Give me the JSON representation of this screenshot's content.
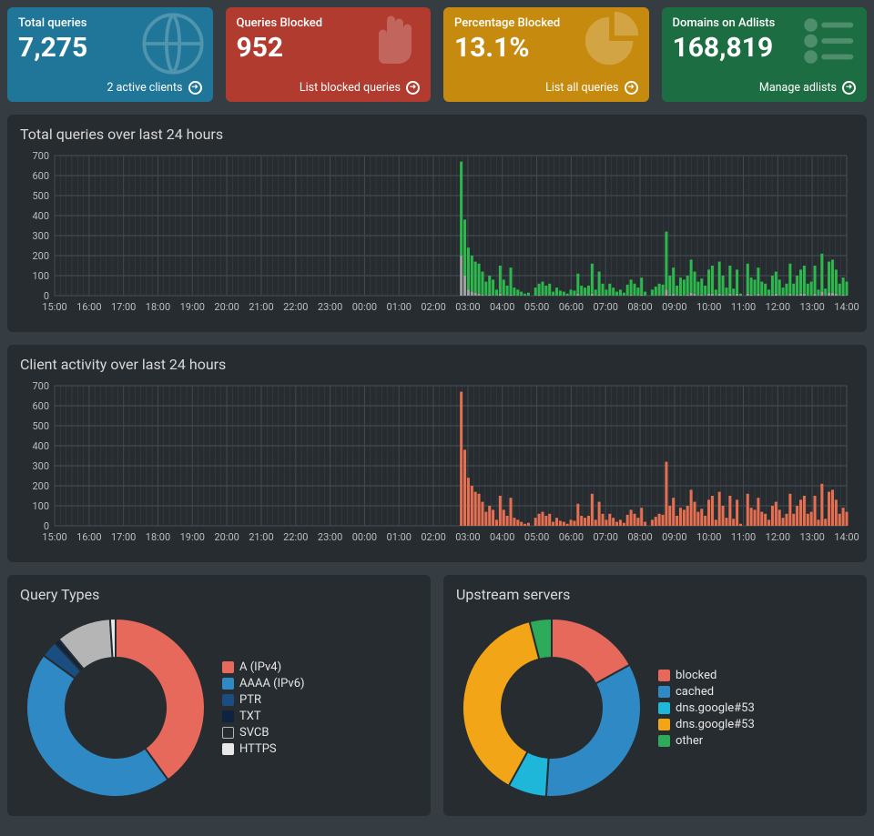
{
  "cards": [
    {
      "label": "Total queries",
      "value": "7,275",
      "link": "2 active clients",
      "bg": "#1f7698",
      "bgDark": "#175a75",
      "icon": "globe"
    },
    {
      "label": "Queries Blocked",
      "value": "952",
      "link": "List blocked queries",
      "bg": "#b13b2f",
      "bgDark": "#8e2f26",
      "icon": "hand"
    },
    {
      "label": "Percentage Blocked",
      "value": "13.1%",
      "link": "List all queries",
      "bg": "#c68a0e",
      "bgDark": "#9e6e0b",
      "icon": "pie"
    },
    {
      "label": "Domains on Adlists",
      "value": "168,819",
      "link": "Manage adlists",
      "bg": "#1c6e42",
      "bgDark": "#155634",
      "icon": "list"
    }
  ],
  "chart1": {
    "title": "Total queries over last 24 hours",
    "ylim": [
      0,
      700
    ],
    "ytick_step": 100,
    "bg": "#272c30",
    "grid": "#4a5056",
    "xlabels": [
      "15:00",
      "16:00",
      "17:00",
      "18:00",
      "19:00",
      "20:00",
      "21:00",
      "22:00",
      "23:00",
      "00:00",
      "01:00",
      "02:00",
      "03:00",
      "04:00",
      "05:00",
      "06:00",
      "07:00",
      "08:00",
      "09:00",
      "10:00",
      "11:00",
      "12:00",
      "13:00",
      "14:00"
    ],
    "permitted_color": "#2db84d",
    "blocked_color": "#a0a0a0",
    "data": [
      [
        0,
        0
      ],
      [
        0,
        0
      ],
      [
        0,
        0
      ],
      [
        0,
        0
      ],
      [
        0,
        0
      ],
      [
        0,
        0
      ],
      [
        0,
        0
      ],
      [
        0,
        0
      ],
      [
        0,
        0
      ],
      [
        0,
        0
      ],
      [
        0,
        0
      ],
      [
        0,
        0
      ],
      [
        0,
        0
      ],
      [
        0,
        0
      ],
      [
        0,
        0
      ],
      [
        0,
        0
      ],
      [
        0,
        0
      ],
      [
        0,
        0
      ],
      [
        0,
        0
      ],
      [
        0,
        0
      ],
      [
        0,
        0
      ],
      [
        0,
        0
      ],
      [
        0,
        0
      ],
      [
        0,
        0
      ],
      [
        0,
        0
      ],
      [
        0,
        0
      ],
      [
        0,
        0
      ],
      [
        0,
        0
      ],
      [
        0,
        0
      ],
      [
        0,
        0
      ],
      [
        0,
        0
      ],
      [
        0,
        0
      ],
      [
        0,
        0
      ],
      [
        0,
        0
      ],
      [
        0,
        0
      ],
      [
        0,
        0
      ],
      [
        0,
        0
      ],
      [
        0,
        0
      ],
      [
        0,
        0
      ],
      [
        0,
        0
      ],
      [
        0,
        0
      ],
      [
        0,
        0
      ],
      [
        0,
        0
      ],
      [
        0,
        0
      ],
      [
        0,
        0
      ],
      [
        0,
        0
      ],
      [
        0,
        0
      ],
      [
        0,
        0
      ],
      [
        0,
        0
      ],
      [
        0,
        0
      ],
      [
        0,
        0
      ],
      [
        0,
        0
      ],
      [
        0,
        0
      ],
      [
        0,
        0
      ],
      [
        0,
        0
      ],
      [
        0,
        0
      ],
      [
        0,
        0
      ],
      [
        0,
        0
      ],
      [
        0,
        0
      ],
      [
        0,
        0
      ],
      [
        0,
        0
      ],
      [
        0,
        0
      ],
      [
        0,
        0
      ],
      [
        0,
        0
      ],
      [
        0,
        0
      ],
      [
        0,
        0
      ],
      [
        0,
        0
      ],
      [
        0,
        0
      ],
      [
        0,
        0
      ],
      [
        0,
        0
      ],
      [
        0,
        0
      ],
      [
        0,
        0
      ],
      [
        0,
        0
      ],
      [
        0,
        0
      ],
      [
        0,
        0
      ],
      [
        0,
        0
      ],
      [
        0,
        0
      ],
      [
        0,
        0
      ],
      [
        0,
        0
      ],
      [
        0,
        0
      ],
      [
        0,
        0
      ],
      [
        0,
        0
      ],
      [
        0,
        0
      ],
      [
        0,
        0
      ],
      [
        0,
        0
      ],
      [
        0,
        0
      ],
      [
        0,
        0
      ],
      [
        0,
        0
      ],
      [
        0,
        0
      ],
      [
        0,
        0
      ],
      [
        0,
        0
      ],
      [
        0,
        0
      ],
      [
        0,
        0
      ],
      [
        0,
        0
      ],
      [
        0,
        0
      ],
      [
        0,
        0
      ],
      [
        0,
        0
      ],
      [
        0,
        0
      ],
      [
        0,
        0
      ],
      [
        0,
        0
      ],
      [
        0,
        0
      ],
      [
        0,
        0
      ],
      [
        0,
        0
      ],
      [
        0,
        0
      ],
      [
        0,
        0
      ],
      [
        0,
        0
      ],
      [
        0,
        0
      ],
      [
        0,
        0
      ],
      [
        0,
        0
      ],
      [
        0,
        0
      ],
      [
        0,
        0
      ],
      [
        0,
        0
      ],
      [
        0,
        0
      ],
      [
        0,
        0
      ],
      [
        0,
        0
      ],
      [
        670,
        200
      ],
      [
        380,
        100
      ],
      [
        240,
        30
      ],
      [
        200,
        20
      ],
      [
        170,
        15
      ],
      [
        160,
        10
      ],
      [
        120,
        5
      ],
      [
        70,
        0
      ],
      [
        100,
        5
      ],
      [
        80,
        0
      ],
      [
        30,
        0
      ],
      [
        150,
        10
      ],
      [
        80,
        0
      ],
      [
        50,
        0
      ],
      [
        140,
        5
      ],
      [
        40,
        0
      ],
      [
        30,
        0
      ],
      [
        20,
        0
      ],
      [
        10,
        0
      ],
      [
        15,
        0
      ],
      [
        0,
        0
      ],
      [
        40,
        0
      ],
      [
        60,
        5
      ],
      [
        70,
        0
      ],
      [
        50,
        0
      ],
      [
        60,
        0
      ],
      [
        20,
        0
      ],
      [
        40,
        0
      ],
      [
        25,
        0
      ],
      [
        20,
        0
      ],
      [
        10,
        0
      ],
      [
        30,
        0
      ],
      [
        25,
        0
      ],
      [
        110,
        10
      ],
      [
        50,
        0
      ],
      [
        40,
        0
      ],
      [
        50,
        0
      ],
      [
        160,
        10
      ],
      [
        30,
        0
      ],
      [
        120,
        5
      ],
      [
        60,
        0
      ],
      [
        30,
        0
      ],
      [
        60,
        0
      ],
      [
        40,
        0
      ],
      [
        20,
        0
      ],
      [
        30,
        0
      ],
      [
        15,
        0
      ],
      [
        55,
        0
      ],
      [
        80,
        5
      ],
      [
        60,
        0
      ],
      [
        40,
        0
      ],
      [
        90,
        5
      ],
      [
        20,
        0
      ],
      [
        0,
        0
      ],
      [
        30,
        0
      ],
      [
        45,
        0
      ],
      [
        60,
        0
      ],
      [
        55,
        0
      ],
      [
        320,
        30
      ],
      [
        100,
        5
      ],
      [
        140,
        10
      ],
      [
        50,
        0
      ],
      [
        90,
        5
      ],
      [
        80,
        0
      ],
      [
        100,
        5
      ],
      [
        180,
        15
      ],
      [
        120,
        10
      ],
      [
        70,
        0
      ],
      [
        85,
        5
      ],
      [
        50,
        0
      ],
      [
        130,
        10
      ],
      [
        150,
        10
      ],
      [
        30,
        0
      ],
      [
        170,
        10
      ],
      [
        100,
        5
      ],
      [
        40,
        0
      ],
      [
        150,
        10
      ],
      [
        35,
        0
      ],
      [
        130,
        10
      ],
      [
        10,
        0
      ],
      [
        0,
        0
      ],
      [
        160,
        10
      ],
      [
        90,
        5
      ],
      [
        80,
        0
      ],
      [
        140,
        10
      ],
      [
        70,
        0
      ],
      [
        60,
        0
      ],
      [
        30,
        0
      ],
      [
        100,
        5
      ],
      [
        120,
        10
      ],
      [
        80,
        0
      ],
      [
        40,
        0
      ],
      [
        60,
        0
      ],
      [
        160,
        10
      ],
      [
        60,
        0
      ],
      [
        100,
        5
      ],
      [
        130,
        10
      ],
      [
        150,
        10
      ],
      [
        60,
        0
      ],
      [
        70,
        0
      ],
      [
        150,
        10
      ],
      [
        30,
        0
      ],
      [
        210,
        20
      ],
      [
        35,
        0
      ],
      [
        170,
        15
      ],
      [
        180,
        15
      ],
      [
        130,
        10
      ],
      [
        60,
        0
      ],
      [
        90,
        5
      ],
      [
        70,
        0
      ]
    ]
  },
  "chart2": {
    "title": "Client activity over last 24 hours",
    "ylim": [
      0,
      700
    ],
    "ytick_step": 100,
    "bar_color": "#e76f51",
    "xlabels": [
      "15:00",
      "16:00",
      "17:00",
      "18:00",
      "19:00",
      "20:00",
      "21:00",
      "22:00",
      "23:00",
      "00:00",
      "01:00",
      "02:00",
      "03:00",
      "04:00",
      "05:00",
      "06:00",
      "07:00",
      "08:00",
      "09:00",
      "10:00",
      "11:00",
      "12:00",
      "13:00",
      "14:00"
    ],
    "data": [
      0,
      0,
      0,
      0,
      0,
      0,
      0,
      0,
      0,
      0,
      0,
      0,
      0,
      0,
      0,
      0,
      0,
      0,
      0,
      0,
      0,
      0,
      0,
      0,
      0,
      0,
      0,
      0,
      0,
      0,
      0,
      0,
      0,
      0,
      0,
      0,
      0,
      0,
      0,
      0,
      0,
      0,
      0,
      0,
      0,
      0,
      0,
      0,
      0,
      0,
      0,
      0,
      0,
      0,
      0,
      0,
      0,
      0,
      0,
      0,
      0,
      0,
      0,
      0,
      0,
      0,
      0,
      0,
      0,
      0,
      0,
      0,
      0,
      0,
      0,
      0,
      0,
      0,
      0,
      0,
      0,
      0,
      0,
      0,
      0,
      0,
      0,
      0,
      0,
      0,
      0,
      0,
      0,
      0,
      0,
      0,
      0,
      0,
      0,
      0,
      0,
      0,
      0,
      0,
      0,
      0,
      0,
      0,
      0,
      0,
      0,
      0,
      0,
      0,
      0,
      670,
      380,
      240,
      200,
      170,
      160,
      120,
      70,
      100,
      80,
      30,
      150,
      80,
      50,
      140,
      40,
      30,
      20,
      10,
      15,
      0,
      40,
      60,
      70,
      50,
      60,
      20,
      40,
      25,
      20,
      10,
      30,
      25,
      110,
      50,
      40,
      50,
      160,
      30,
      120,
      60,
      30,
      60,
      40,
      20,
      30,
      15,
      55,
      80,
      60,
      40,
      90,
      20,
      0,
      30,
      45,
      60,
      55,
      320,
      100,
      140,
      50,
      90,
      80,
      100,
      180,
      120,
      70,
      85,
      50,
      130,
      150,
      30,
      170,
      100,
      40,
      150,
      35,
      130,
      10,
      0,
      160,
      90,
      80,
      140,
      70,
      60,
      30,
      100,
      120,
      80,
      40,
      60,
      160,
      60,
      100,
      130,
      150,
      60,
      70,
      150,
      30,
      210,
      35,
      170,
      180,
      130,
      60,
      90,
      70
    ]
  },
  "donut1": {
    "title": "Query Types",
    "slices": [
      {
        "label": "A (IPv4)",
        "color": "#e7695b",
        "value": 40,
        "checked": true
      },
      {
        "label": "AAAA (IPv6)",
        "color": "#2f89c5",
        "value": 45,
        "checked": true
      },
      {
        "label": "PTR",
        "color": "#1a4d80",
        "value": 3,
        "checked": true
      },
      {
        "label": "TXT",
        "color": "#0d2340",
        "value": 1,
        "checked": true
      },
      {
        "label": "SVCB",
        "color": "#b5b5b5",
        "value": 10,
        "checked": false
      },
      {
        "label": "HTTPS",
        "color": "#e8e8e8",
        "value": 1,
        "checked": true
      }
    ]
  },
  "donut2": {
    "title": "Upstream servers",
    "slices": [
      {
        "label": "blocked",
        "color": "#e7695b",
        "value": 17,
        "checked": true
      },
      {
        "label": "cached",
        "color": "#2f89c5",
        "value": 34,
        "checked": true
      },
      {
        "label": "dns.google#53",
        "color": "#1eb6d9",
        "value": 7,
        "checked": true
      },
      {
        "label": "dns.google#53",
        "color": "#f2a516",
        "value": 38,
        "checked": true
      },
      {
        "label": "other",
        "color": "#2eab5a",
        "value": 4,
        "checked": true
      }
    ]
  }
}
